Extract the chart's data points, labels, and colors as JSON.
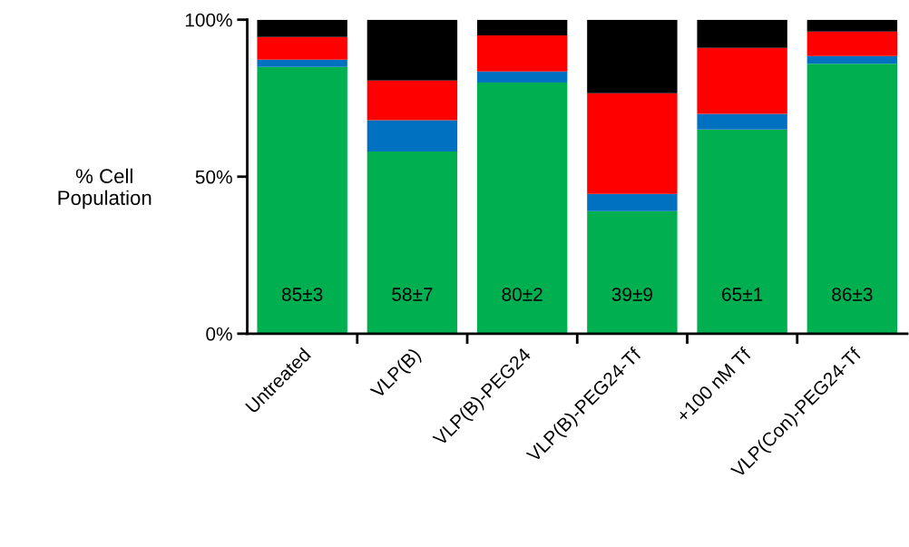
{
  "chart_data": {
    "type": "bar",
    "stacked": true,
    "ylabel": "% Cell\nPopulation",
    "categories": [
      "Untreated",
      "VLP(B)",
      "VLP(B)-PEG24",
      "VLP(B)-PEG24-Tf",
      "+100 nM Tf",
      "VLP(Con)-PEG24-Tf"
    ],
    "series": [
      {
        "color": "#00b050",
        "values": [
          85,
          58,
          80,
          39,
          65,
          86
        ],
        "value_labels": [
          "85±3",
          "58±7",
          "80±2",
          "39±9",
          "65±1",
          "86±3"
        ]
      },
      {
        "color": "#0070c0",
        "values": [
          2.3,
          10,
          3.5,
          5.5,
          5,
          2.4
        ]
      },
      {
        "color": "#ff0000",
        "values": [
          7.2,
          12.6,
          11.5,
          32.1,
          21,
          7.8
        ]
      },
      {
        "color": "#000000",
        "values": [
          5.5,
          19.4,
          5,
          23.4,
          9,
          3.8
        ]
      }
    ],
    "ylim": [
      0,
      100
    ],
    "yticks": [
      {
        "value": 0,
        "label": "0%"
      },
      {
        "value": 50,
        "label": "50%"
      },
      {
        "value": 100,
        "label": "100%"
      }
    ],
    "grid": false,
    "legend": false
  }
}
